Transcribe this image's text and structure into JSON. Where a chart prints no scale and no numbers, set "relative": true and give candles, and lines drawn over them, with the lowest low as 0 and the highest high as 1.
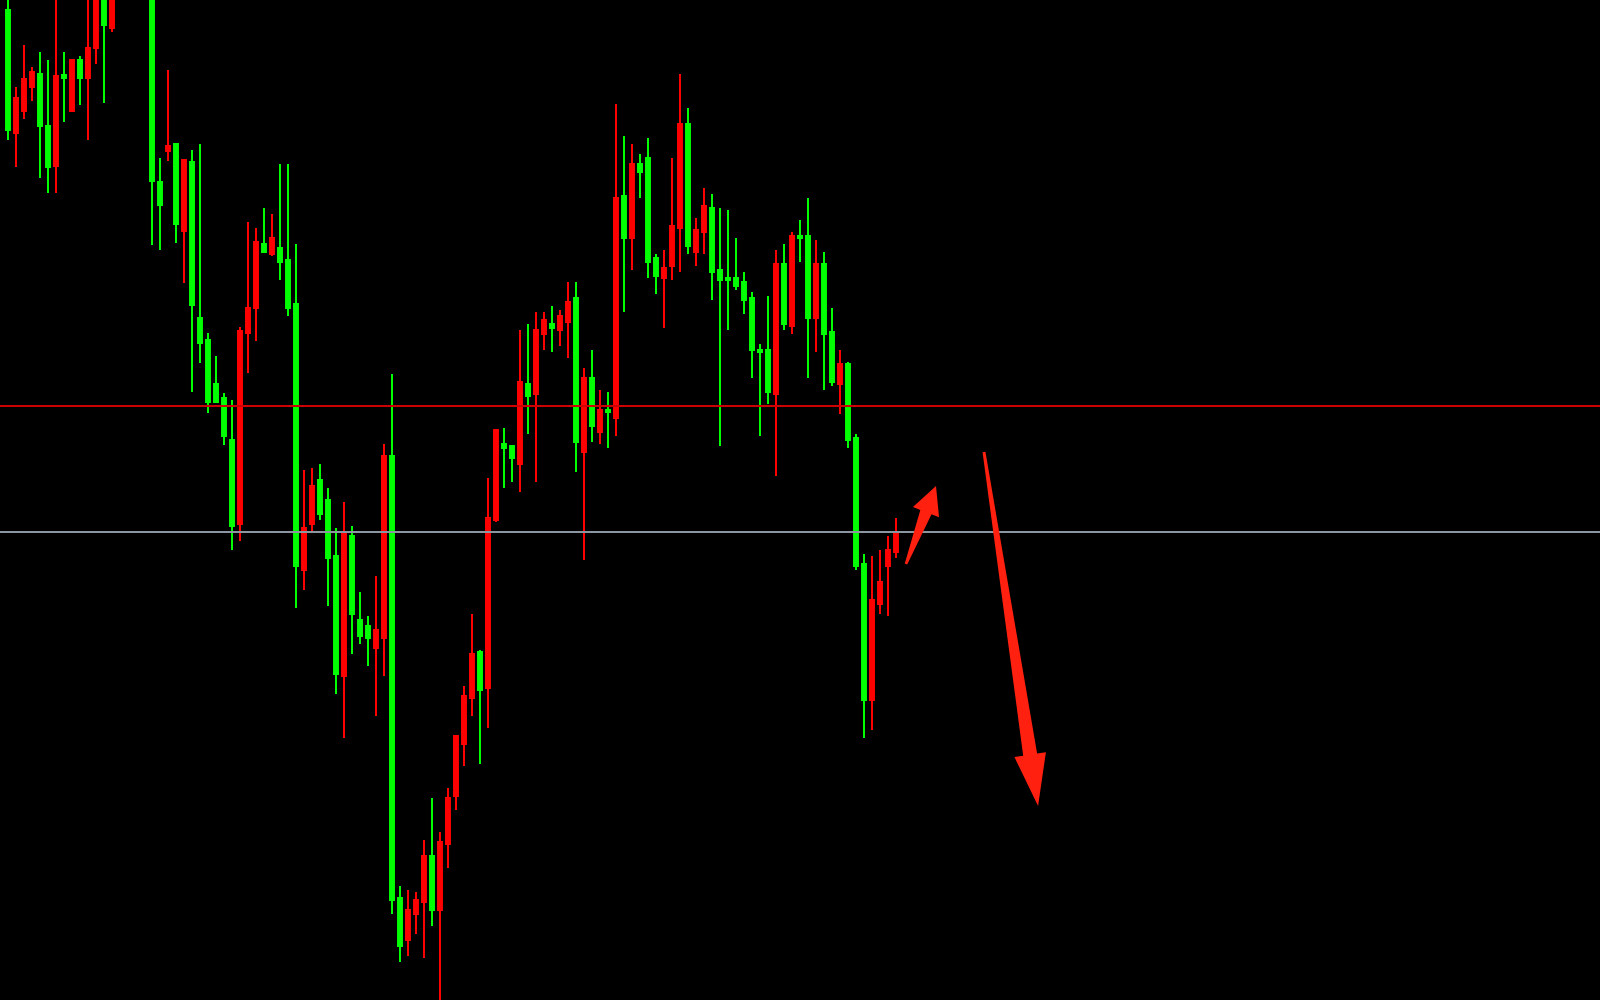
{
  "chart_data": {
    "type": "candlestick",
    "relative": true,
    "categories": [
      null,
      null,
      null,
      null,
      null,
      null,
      null,
      null,
      null,
      null,
      null,
      null,
      null,
      null,
      null,
      null,
      null,
      null,
      null,
      null,
      null,
      null,
      null,
      null,
      null,
      null,
      null,
      null,
      null,
      null,
      null,
      null,
      null,
      null,
      null,
      null,
      null,
      null,
      null,
      null,
      null,
      null,
      null,
      null,
      null,
      null,
      null,
      null,
      null,
      null,
      null,
      null,
      null,
      null,
      null,
      null,
      null,
      null,
      null,
      null,
      null,
      null,
      null,
      null,
      null,
      null,
      null,
      null,
      null,
      null,
      null,
      null,
      null,
      null,
      null,
      null,
      null,
      null,
      null,
      null,
      null,
      null,
      null,
      null,
      null,
      null,
      null,
      null,
      null,
      null,
      null,
      null,
      null,
      null,
      null,
      null,
      null,
      null,
      null,
      null,
      null,
      null,
      null,
      null,
      null,
      null,
      null,
      null,
      null,
      null,
      null,
      null,
      null,
      null,
      null,
      null,
      null,
      null,
      null,
      null,
      null,
      null,
      null,
      null,
      null,
      null,
      null,
      null,
      null,
      null,
      null,
      null,
      null,
      null,
      null,
      null,
      null,
      null,
      null,
      null,
      null,
      null,
      null,
      null,
      null,
      null,
      null,
      null,
      null,
      null,
      null,
      null,
      null,
      null,
      null,
      null,
      null,
      null,
      null,
      null,
      null,
      null,
      null,
      null,
      null,
      null,
      null,
      null,
      null,
      null,
      null,
      null,
      null,
      null,
      null,
      null,
      null,
      null,
      null,
      null,
      null,
      null,
      null,
      null,
      null,
      null,
      null,
      null,
      null,
      null,
      null,
      null,
      null,
      null,
      null,
      null,
      null,
      null,
      null,
      null
    ],
    "ohlc": [
      [
        0.99,
        1,
        0.86,
        0.87
      ],
      [
        0.867,
        0.913,
        0.833,
        0.902
      ],
      [
        0.889,
        0.955,
        0.881,
        0.921
      ],
      [
        0.913,
        0.933,
        0.899,
        0.928
      ],
      [
        0.926,
        0.948,
        0.822,
        0.874
      ],
      [
        0.874,
        0.94,
        0.807,
        0.833
      ],
      [
        0.834,
        1,
        0.807,
        0.924
      ],
      [
        0.925,
        0.948,
        0.878,
        0.922
      ],
      [
        0.889,
        0.941,
        0.888,
        0.94
      ],
      [
        0.94,
        0.944,
        0.895,
        0.922
      ],
      [
        0.922,
        1,
        0.86,
        0.952
      ],
      [
        0.952,
        1,
        0.936,
        1
      ],
      [
        1,
        1,
        0.897,
        0.975
      ],
      [
        0.972,
        1,
        0.968,
        1
      ],
      null,
      null,
      null,
      null,
      [
        1,
        1,
        0.755,
        0.819
      ],
      [
        0.818,
        0.842,
        0.75,
        0.795
      ],
      [
        0.849,
        0.93,
        0.839,
        0.854
      ],
      [
        0.856,
        0.856,
        0.757,
        0.776
      ],
      [
        0.769,
        0.84,
        0.717,
        0.84
      ],
      [
        0.838,
        0.85,
        0.608,
        0.695
      ],
      [
        0.682,
        0.856,
        0.637,
        0.657
      ],
      [
        0.66,
        0.667,
        0.587,
        0.598
      ],
      [
        0.616,
        0.644,
        0.598,
        0.598
      ],
      [
        0.602,
        0.607,
        0.555,
        0.564
      ],
      [
        0.56,
        0.6,
        0.45,
        0.474
      ],
      [
        0.476,
        0.673,
        0.459,
        0.669
      ],
      [
        0.667,
        0.778,
        0.627,
        0.692
      ],
      [
        0.692,
        0.772,
        0.659,
        0.758
      ],
      [
        0.756,
        0.792,
        0.748,
        0.748
      ],
      [
        0.746,
        0.786,
        0.744,
        0.762
      ],
      [
        0.752,
        0.836,
        0.72,
        0.738
      ],
      [
        0.74,
        0.836,
        0.684,
        0.692
      ],
      [
        0.696,
        0.756,
        0.392,
        0.434
      ],
      [
        0.43,
        0.53,
        0.41,
        0.472
      ],
      [
        0.476,
        0.532,
        0.468,
        0.514
      ],
      [
        0.52,
        0.536,
        0.48,
        0.486
      ],
      [
        0.5,
        0.512,
        0.394,
        0.442
      ],
      [
        0.444,
        0.472,
        0.306,
        0.326
      ],
      [
        0.324,
        0.498,
        0.262,
        0.468
      ],
      [
        0.464,
        0.474,
        0.346,
        0.386
      ],
      [
        0.38,
        0.408,
        0.356,
        0.364
      ],
      [
        0.374,
        0.384,
        0.334,
        0.362
      ],
      [
        0.352,
        0.424,
        0.284,
        0.37
      ],
      [
        0.362,
        0.556,
        0.324,
        0.544
      ],
      [
        0.544,
        0.626,
        0.086,
        0.1
      ],
      [
        0.102,
        0.114,
        0.038,
        0.054
      ],
      [
        0.06,
        0.11,
        0.044,
        0.09
      ],
      [
        0.086,
        0.108,
        0.066,
        0.1
      ],
      [
        0.098,
        0.16,
        0.042,
        0.144
      ],
      [
        0.144,
        0.202,
        0.074,
        0.09
      ],
      [
        0.09,
        0.168,
        0,
        0.158
      ],
      [
        0.156,
        0.212,
        0.132,
        0.202
      ],
      [
        0.204,
        0.264,
        0.19,
        0.264
      ],
      [
        0.256,
        0.314,
        0.234,
        0.304
      ],
      [
        0.302,
        0.386,
        0.284,
        0.346
      ],
      [
        0.348,
        0.35,
        0.236,
        0.31
      ],
      [
        0.312,
        0.522,
        0.272,
        0.482
      ],
      [
        0.48,
        0.57,
        0.478,
        0.57
      ],
      [
        0.556,
        0.572,
        0.512,
        0.552
      ],
      [
        0.554,
        0.554,
        0.518,
        0.542
      ],
      [
        0.536,
        0.67,
        0.508,
        0.618
      ],
      [
        0.616,
        0.676,
        0.566,
        0.604
      ],
      [
        0.606,
        0.688,
        0.518,
        0.67
      ],
      [
        0.666,
        0.688,
        0.65,
        0.68
      ],
      [
        0.676,
        0.694,
        0.648,
        0.672
      ],
      [
        0.67,
        0.69,
        0.654,
        0.684
      ],
      [
        0.678,
        0.718,
        0.642,
        0.698
      ],
      [
        0.702,
        0.718,
        0.528,
        0.558
      ],
      [
        0.548,
        0.632,
        0.44,
        0.622
      ],
      [
        0.622,
        0.65,
        0.558,
        0.574
      ],
      [
        0.568,
        0.61,
        0.556,
        0.59
      ],
      [
        0.59,
        0.608,
        0.552,
        0.588
      ],
      [
        0.582,
        0.896,
        0.564,
        0.802
      ],
      [
        0.804,
        0.864,
        0.688,
        0.762
      ],
      [
        0.762,
        0.856,
        0.73,
        0.836
      ],
      [
        0.836,
        0.846,
        0.802,
        0.828
      ],
      [
        0.842,
        0.862,
        0.722,
        0.738
      ],
      [
        0.742,
        0.746,
        0.706,
        0.724
      ],
      [
        0.722,
        0.75,
        0.672,
        0.732
      ],
      [
        0.734,
        0.842,
        0.72,
        0.774
      ],
      [
        0.772,
        0.926,
        0.728,
        0.876
      ],
      [
        0.876,
        0.892,
        0.746,
        0.754
      ],
      [
        0.748,
        0.782,
        0.734,
        0.77
      ],
      [
        0.768,
        0.812,
        0.746,
        0.794
      ],
      [
        0.792,
        0.806,
        0.7,
        0.728
      ],
      [
        0.73,
        0.792,
        0.554,
        0.72
      ],
      [
        0.722,
        0.79,
        0.67,
        0.72
      ],
      [
        0.722,
        0.762,
        0.71,
        0.714
      ],
      [
        0.718,
        0.728,
        0.686,
        0.7
      ],
      [
        0.702,
        0.708,
        0.622,
        0.65
      ],
      [
        0.65,
        0.656,
        0.564,
        0.648
      ],
      [
        0.65,
        0.704,
        0.596,
        0.608
      ],
      [
        0.606,
        0.75,
        0.524,
        0.736
      ],
      [
        0.736,
        0.756,
        0.67,
        0.676
      ],
      [
        0.674,
        0.768,
        0.666,
        0.764
      ],
      [
        0.764,
        0.78,
        0.738,
        0.762
      ],
      [
        0.764,
        0.802,
        0.622,
        0.682
      ],
      [
        0.682,
        0.76,
        0.648,
        0.736
      ],
      [
        0.736,
        0.748,
        0.61,
        0.666
      ],
      [
        0.668,
        0.692,
        0.614,
        0.618
      ],
      [
        0.616,
        0.65,
        0.586,
        0.636
      ],
      [
        0.636,
        0.638,
        0.552,
        0.56
      ],
      [
        0.562,
        0.566,
        0.43,
        0.434
      ],
      [
        0.436,
        0.446,
        0.262,
        0.3
      ],
      [
        0.3,
        0.444,
        0.27,
        0.4
      ],
      [
        0.396,
        0.45,
        0.386,
        0.418
      ],
      [
        0.434,
        0.464,
        0.384,
        0.45
      ],
      [
        0.448,
        0.482,
        0.442,
        0.468
      ],
      null,
      null,
      null,
      null,
      null,
      null,
      null,
      null,
      null,
      null,
      null,
      null,
      null,
      null,
      null,
      null,
      null,
      null,
      null,
      null,
      null,
      null,
      null,
      null,
      null,
      null,
      null,
      null,
      null,
      null,
      null,
      null,
      null,
      null,
      null,
      null,
      null,
      null,
      null,
      null,
      null,
      null,
      null,
      null,
      null,
      null,
      null,
      null,
      null,
      null,
      null,
      null,
      null,
      null,
      null,
      null,
      null,
      null,
      null,
      null,
      null,
      null,
      null,
      null,
      null,
      null,
      null,
      null,
      null,
      null,
      null,
      null,
      null,
      null,
      null,
      null,
      null,
      null,
      null,
      null,
      null,
      null,
      null,
      null,
      null,
      null,
      null,
      null
    ],
    "ref_lines": [
      {
        "axis": "y",
        "value": 0.594,
        "color": "#cc0000"
      },
      {
        "axis": "y",
        "value": 0.468,
        "color": "#8c96a0"
      }
    ]
  }
}
